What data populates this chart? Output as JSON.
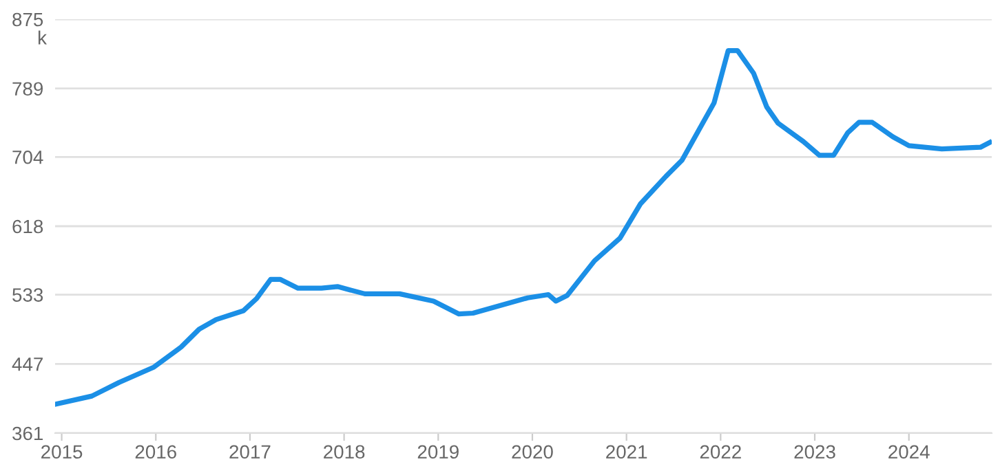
{
  "chart_data": {
    "type": "line",
    "ylabel": "k",
    "x": [
      2014.94,
      2015.32,
      2015.61,
      2015.98,
      2016.27,
      2016.46,
      2016.64,
      2016.93,
      2017.07,
      2017.22,
      2017.32,
      2017.51,
      2017.76,
      2017.93,
      2018.22,
      2018.59,
      2018.95,
      2019.22,
      2019.37,
      2019.95,
      2020.17,
      2020.25,
      2020.37,
      2020.66,
      2020.93,
      2021.15,
      2021.42,
      2021.59,
      2021.81,
      2021.93,
      2022.08,
      2022.18,
      2022.35,
      2022.49,
      2022.61,
      2022.88,
      2023.05,
      2023.2,
      2023.35,
      2023.47,
      2023.61,
      2023.83,
      2024.0,
      2024.35,
      2024.76,
      2024.86
    ],
    "series": [
      {
        "color": "#1b8fe6",
        "values": [
          397,
          407,
          424,
          443,
          468,
          490,
          502,
          513,
          528,
          552,
          552,
          541,
          541,
          543,
          534,
          534,
          525,
          509,
          510,
          529,
          533,
          525,
          532,
          575,
          603,
          646,
          680,
          700,
          746,
          771,
          836,
          836,
          808,
          766,
          746,
          723,
          706,
          706,
          734,
          747,
          747,
          729,
          718,
          714,
          716,
          722
        ]
      }
    ],
    "xlim": [
      2014.93,
      2024.88
    ],
    "xticks": [
      2015,
      2016,
      2017,
      2018,
      2019,
      2020,
      2021,
      2022,
      2023,
      2024
    ],
    "ylim": [
      361,
      875
    ],
    "yticks": [
      361,
      447,
      533,
      618,
      704,
      789,
      875
    ],
    "grid": "y",
    "legend": false,
    "marker": "none",
    "line_style": "solid"
  }
}
